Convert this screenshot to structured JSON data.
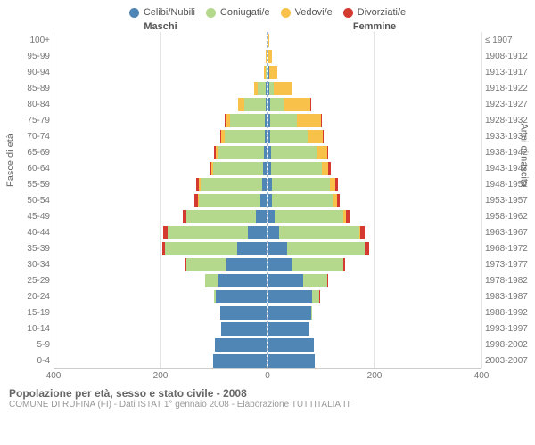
{
  "legend": [
    {
      "label": "Celibi/Nubili",
      "color": "#4f86b5"
    },
    {
      "label": "Coniugati/e",
      "color": "#b4d88c"
    },
    {
      "label": "Vedovi/e",
      "color": "#f7c14a"
    },
    {
      "label": "Divorziati/e",
      "color": "#d43a2f"
    }
  ],
  "headers": {
    "male": "Maschi",
    "female": "Femmine"
  },
  "axis_titles": {
    "left": "Fasce di età",
    "right": "Anni di nascita"
  },
  "footer": {
    "title": "Popolazione per età, sesso e stato civile - 2008",
    "sub": "COMUNE DI RUFINA (FI) - Dati ISTAT 1° gennaio 2008 - Elaborazione TUTTITALIA.IT"
  },
  "x": {
    "max": 400,
    "ticks": [
      400,
      200,
      0,
      200,
      400
    ]
  },
  "colors": {
    "celibi": "#4f86b5",
    "coniugati": "#b4d88c",
    "vedovi": "#f7c14a",
    "divorziati": "#d43a2f",
    "grid": "#e5e5e5",
    "center": "#9bb8d3"
  },
  "rows": [
    {
      "age": "100+",
      "birth": "≤ 1907",
      "m": {
        "c": 0,
        "co": 0,
        "v": 0,
        "d": 0
      },
      "f": {
        "c": 0,
        "co": 0,
        "v": 2,
        "d": 0
      }
    },
    {
      "age": "95-99",
      "birth": "1908-1912",
      "m": {
        "c": 0,
        "co": 0,
        "v": 2,
        "d": 0
      },
      "f": {
        "c": 0,
        "co": 0,
        "v": 12,
        "d": 0
      }
    },
    {
      "age": "90-94",
      "birth": "1913-1917",
      "m": {
        "c": 0,
        "co": 5,
        "v": 6,
        "d": 0
      },
      "f": {
        "c": 2,
        "co": 3,
        "v": 28,
        "d": 0
      }
    },
    {
      "age": "85-89",
      "birth": "1918-1922",
      "m": {
        "c": 2,
        "co": 30,
        "v": 15,
        "d": 0
      },
      "f": {
        "c": 5,
        "co": 15,
        "v": 70,
        "d": 0
      }
    },
    {
      "age": "80-84",
      "birth": "1923-1927",
      "m": {
        "c": 4,
        "co": 80,
        "v": 22,
        "d": 2
      },
      "f": {
        "c": 8,
        "co": 50,
        "v": 100,
        "d": 2
      }
    },
    {
      "age": "75-79",
      "birth": "1928-1932",
      "m": {
        "c": 6,
        "co": 130,
        "v": 18,
        "d": 3
      },
      "f": {
        "c": 8,
        "co": 100,
        "v": 90,
        "d": 3
      }
    },
    {
      "age": "70-74",
      "birth": "1933-1937",
      "m": {
        "c": 8,
        "co": 150,
        "v": 12,
        "d": 4
      },
      "f": {
        "c": 8,
        "co": 140,
        "v": 55,
        "d": 4
      }
    },
    {
      "age": "65-69",
      "birth": "1938-1942",
      "m": {
        "c": 10,
        "co": 170,
        "v": 10,
        "d": 6
      },
      "f": {
        "c": 10,
        "co": 170,
        "v": 40,
        "d": 6
      }
    },
    {
      "age": "60-64",
      "birth": "1943-1947",
      "m": {
        "c": 12,
        "co": 190,
        "v": 6,
        "d": 8
      },
      "f": {
        "c": 10,
        "co": 190,
        "v": 25,
        "d": 8
      }
    },
    {
      "age": "55-59",
      "birth": "1948-1952",
      "m": {
        "c": 18,
        "co": 230,
        "v": 5,
        "d": 10
      },
      "f": {
        "c": 12,
        "co": 220,
        "v": 18,
        "d": 10
      }
    },
    {
      "age": "50-54",
      "birth": "1953-1957",
      "m": {
        "c": 25,
        "co": 230,
        "v": 3,
        "d": 12
      },
      "f": {
        "c": 15,
        "co": 230,
        "v": 12,
        "d": 12
      }
    },
    {
      "age": "45-49",
      "birth": "1958-1962",
      "m": {
        "c": 40,
        "co": 260,
        "v": 2,
        "d": 14
      },
      "f": {
        "c": 22,
        "co": 260,
        "v": 8,
        "d": 14
      }
    },
    {
      "age": "40-44",
      "birth": "1963-1967",
      "m": {
        "c": 70,
        "co": 300,
        "v": 1,
        "d": 16
      },
      "f": {
        "c": 40,
        "co": 300,
        "v": 5,
        "d": 16
      }
    },
    {
      "age": "35-39",
      "birth": "1968-1972",
      "m": {
        "c": 110,
        "co": 270,
        "v": 1,
        "d": 12
      },
      "f": {
        "c": 70,
        "co": 290,
        "v": 3,
        "d": 14
      }
    },
    {
      "age": "30-34",
      "birth": "1973-1977",
      "m": {
        "c": 150,
        "co": 150,
        "v": 0,
        "d": 6
      },
      "f": {
        "c": 90,
        "co": 190,
        "v": 1,
        "d": 8
      }
    },
    {
      "age": "25-29",
      "birth": "1978-1982",
      "m": {
        "c": 180,
        "co": 50,
        "v": 0,
        "d": 2
      },
      "f": {
        "c": 130,
        "co": 90,
        "v": 0,
        "d": 3
      }
    },
    {
      "age": "20-24",
      "birth": "1983-1987",
      "m": {
        "c": 190,
        "co": 8,
        "v": 0,
        "d": 0
      },
      "f": {
        "c": 165,
        "co": 25,
        "v": 0,
        "d": 1
      }
    },
    {
      "age": "15-19",
      "birth": "1988-1992",
      "m": {
        "c": 175,
        "co": 0,
        "v": 0,
        "d": 0
      },
      "f": {
        "c": 160,
        "co": 2,
        "v": 0,
        "d": 0
      }
    },
    {
      "age": "10-14",
      "birth": "1993-1997",
      "m": {
        "c": 170,
        "co": 0,
        "v": 0,
        "d": 0
      },
      "f": {
        "c": 155,
        "co": 0,
        "v": 0,
        "d": 0
      }
    },
    {
      "age": "5-9",
      "birth": "1998-2002",
      "m": {
        "c": 195,
        "co": 0,
        "v": 0,
        "d": 0
      },
      "f": {
        "c": 170,
        "co": 0,
        "v": 0,
        "d": 0
      }
    },
    {
      "age": "0-4",
      "birth": "2003-2007",
      "m": {
        "c": 200,
        "co": 0,
        "v": 0,
        "d": 0
      },
      "f": {
        "c": 175,
        "co": 0,
        "v": 0,
        "d": 0
      }
    }
  ]
}
